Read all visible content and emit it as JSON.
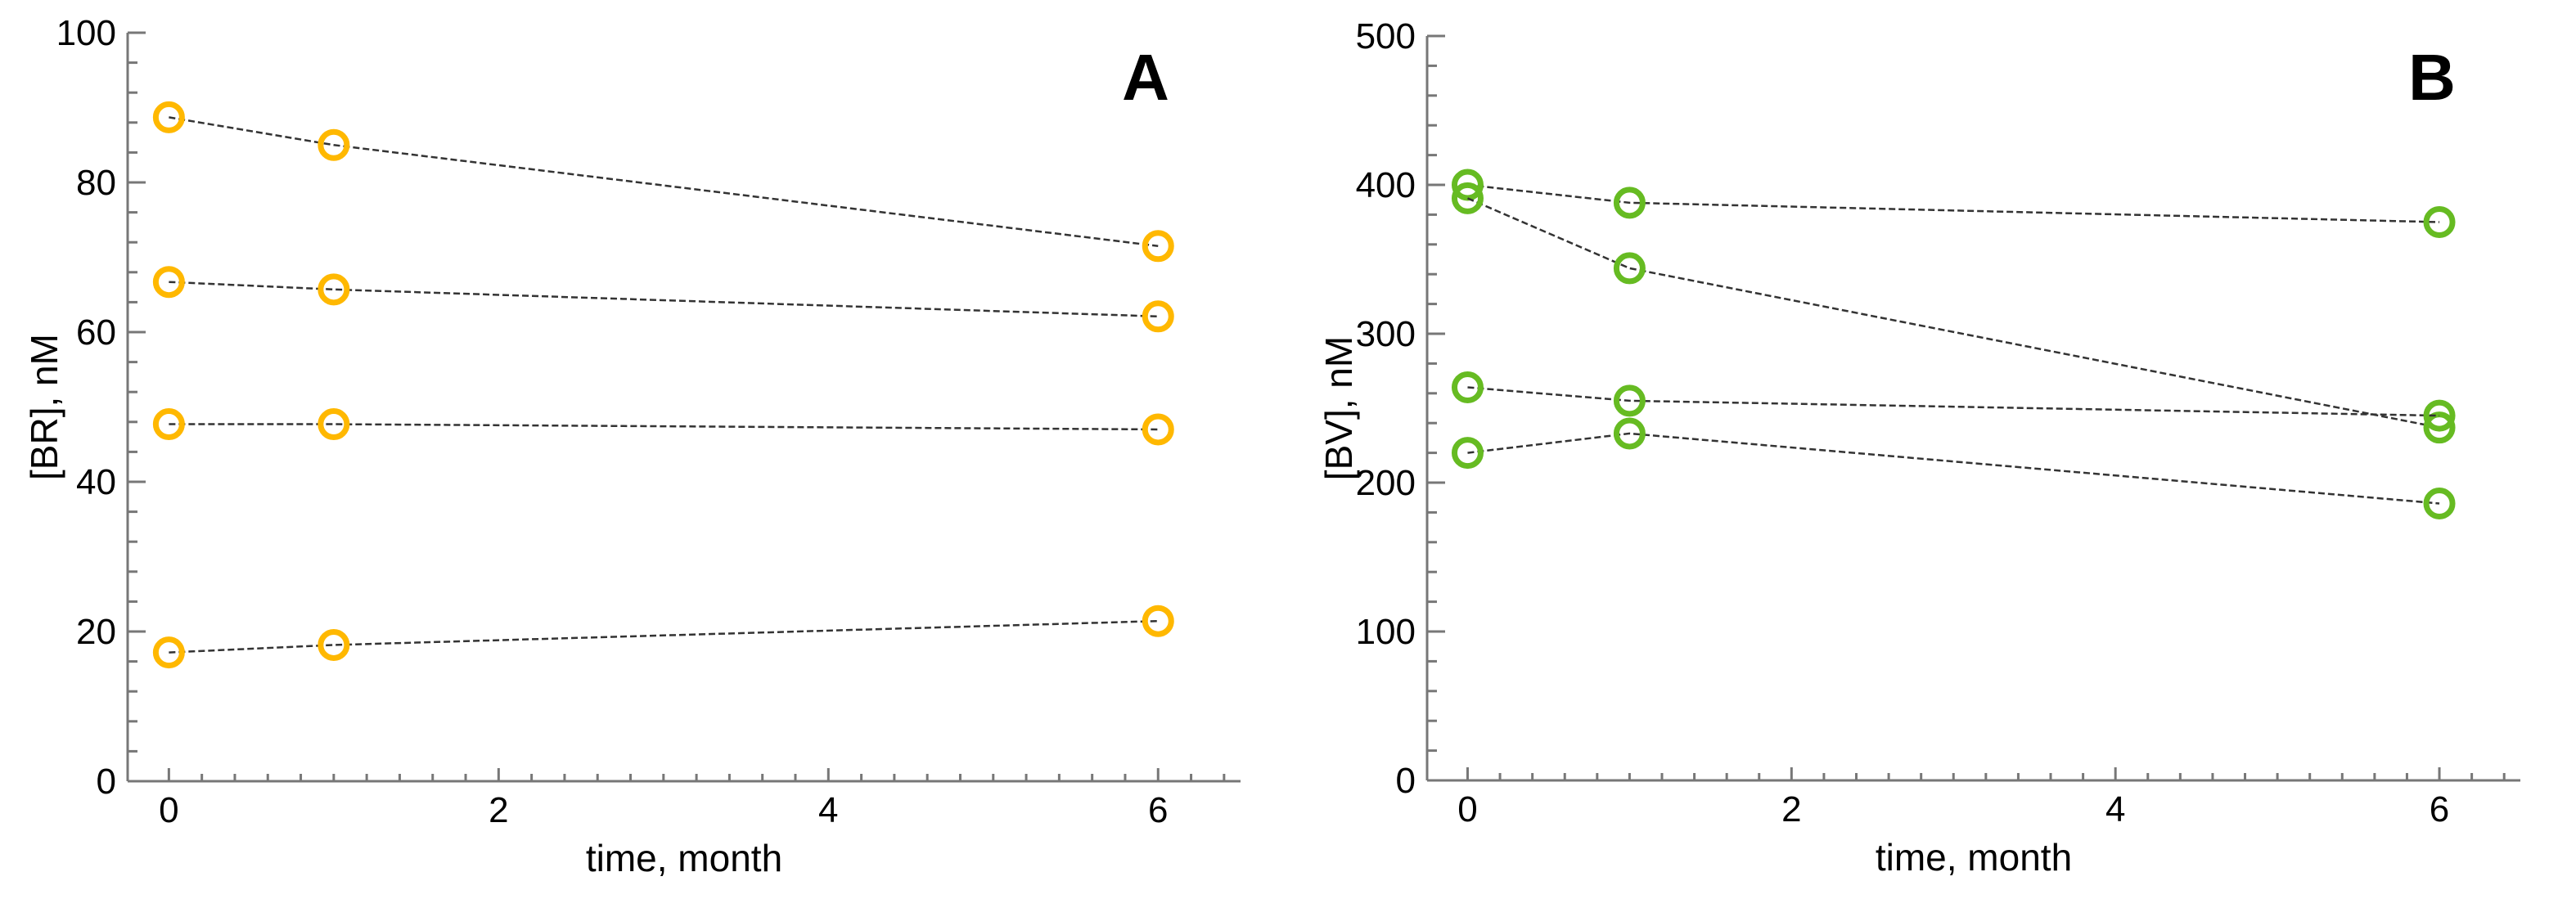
{
  "chart_data": [
    {
      "type": "line",
      "panel_label": "A",
      "xlabel": "time, month",
      "ylabel": "[BR], nM",
      "xlim": [
        -0.25,
        6.5
      ],
      "ylim": [
        0,
        100
      ],
      "xticks": [
        0,
        2,
        4,
        6
      ],
      "yticks": [
        0,
        20,
        40,
        60,
        80,
        100
      ],
      "grid": false,
      "marker": "open-circle",
      "line_style": "dashed",
      "color": "#FFB800",
      "line_color": "#333333",
      "x": [
        0,
        1,
        6
      ],
      "series": [
        {
          "values": [
            88.7,
            85.0,
            71.5
          ]
        },
        {
          "values": [
            66.7,
            65.7,
            62.1
          ]
        },
        {
          "values": [
            47.7,
            47.7,
            47.0
          ]
        },
        {
          "values": [
            17.2,
            18.2,
            21.4
          ]
        }
      ]
    },
    {
      "type": "line",
      "panel_label": "B",
      "xlabel": "time, month",
      "ylabel": "[BV], nM",
      "xlim": [
        -0.25,
        6.5
      ],
      "ylim": [
        0,
        500
      ],
      "xticks": [
        0,
        2,
        4,
        6
      ],
      "yticks": [
        0,
        100,
        200,
        300,
        400,
        500
      ],
      "grid": false,
      "marker": "open-circle",
      "line_style": "dashed",
      "color": "#66BB22",
      "line_color": "#333333",
      "x": [
        0,
        1,
        6
      ],
      "series": [
        {
          "values": [
            400,
            388,
            375
          ]
        },
        {
          "values": [
            391,
            344,
            237
          ]
        },
        {
          "values": [
            264,
            255,
            245
          ]
        },
        {
          "values": [
            220,
            233,
            186
          ]
        }
      ]
    }
  ]
}
